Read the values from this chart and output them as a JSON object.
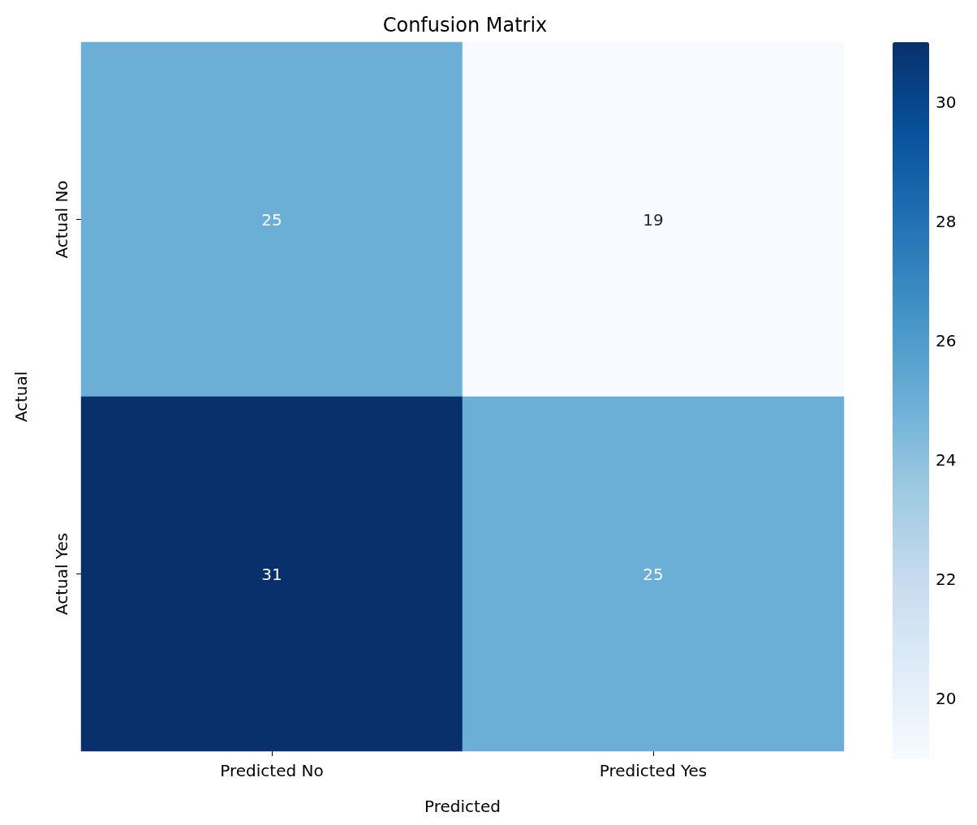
{
  "chart_data": {
    "type": "heatmap",
    "title": "Confusion Matrix",
    "xlabel": "Predicted",
    "ylabel": "Actual",
    "categories": [
      "Predicted No",
      "Predicted Yes"
    ],
    "y_categories": [
      "Actual No",
      "Actual Yes"
    ],
    "cells": [
      [
        25,
        19
      ],
      [
        31,
        25
      ]
    ],
    "data_labels": true,
    "clim": [
      19,
      31
    ],
    "cticks": [
      20,
      22,
      24,
      26,
      28,
      30
    ]
  }
}
